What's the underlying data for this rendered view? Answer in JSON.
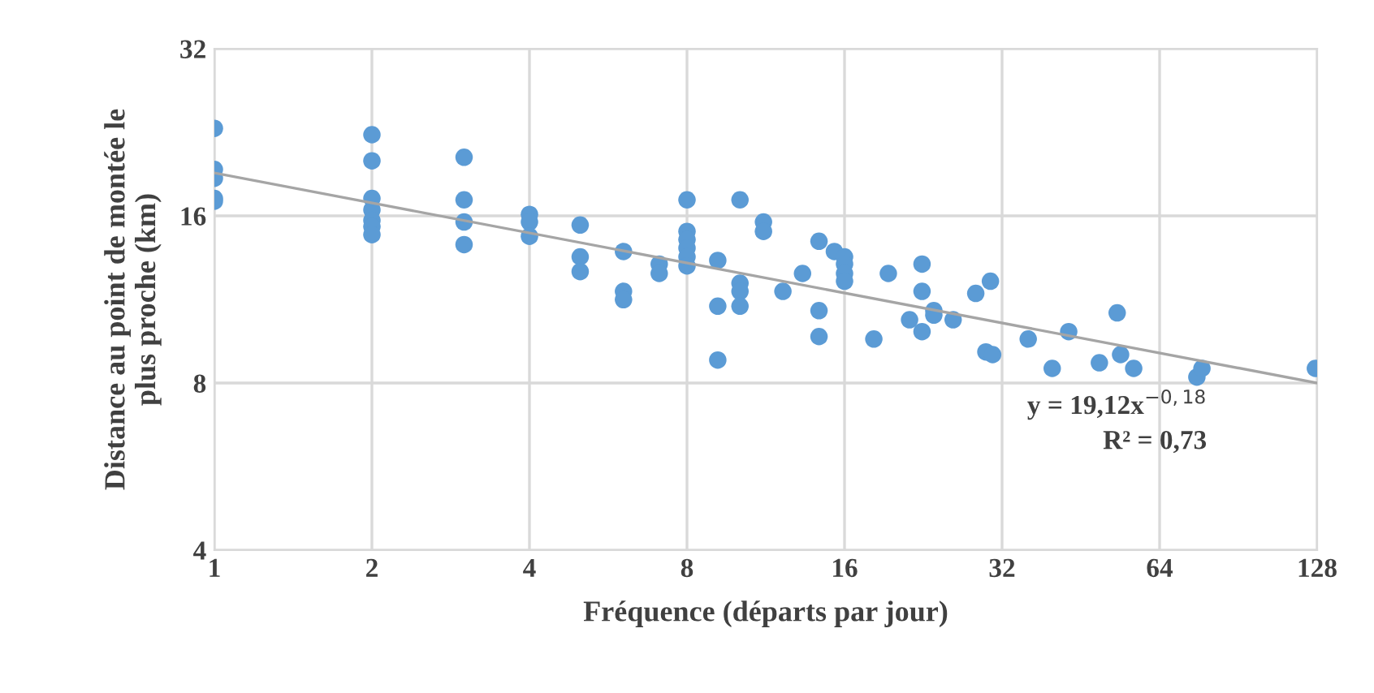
{
  "chart_data": {
    "type": "scatter",
    "xlabel": "Fréquence (départs par jour)",
    "ylabel": "Distance au point de montée le\nplus proche (km)",
    "log": "xy",
    "grid": true,
    "xlim": [
      1,
      128
    ],
    "ylim": [
      4,
      32
    ],
    "xticks": [
      1,
      2,
      4,
      8,
      16,
      32,
      64,
      128
    ],
    "yticks": [
      4,
      8,
      16,
      32
    ],
    "annotations": [
      "y = 19,12x$^{−0,18}$",
      "R² = 0,73"
    ],
    "series": [
      {
        "color": "#5b9bd5",
        "marker": "circle",
        "x": [
          1,
          1,
          1,
          1,
          1,
          2,
          2,
          2,
          2,
          2,
          2,
          2,
          3,
          3,
          3,
          3,
          4,
          4,
          4,
          5,
          5,
          5,
          6.05,
          6.05,
          6.05,
          7.08,
          7.08,
          8,
          8,
          8,
          8,
          8,
          8,
          9.16,
          9.16,
          9.16,
          10.1,
          10.1,
          10.1,
          10.1,
          11.2,
          11.2,
          12.2,
          13.3,
          14.3,
          14.3,
          14.3,
          15.3,
          16,
          16,
          16,
          16,
          18.2,
          19.4,
          21.3,
          22.5,
          22.5,
          22.5,
          23.7,
          23.7,
          25.8,
          28.5,
          30.4,
          29.8,
          30.7,
          35.9,
          39.9,
          42.9,
          49.1,
          53.1,
          53.9,
          57.1,
          75.4,
          77.1,
          127
        ],
        "values": [
          23.0,
          19.4,
          18.7,
          17.2,
          17.0,
          22.4,
          20.1,
          17.2,
          16.4,
          15.7,
          15.3,
          14.8,
          20.4,
          17.1,
          15.6,
          14.2,
          16.1,
          15.6,
          14.7,
          15.4,
          13.5,
          12.7,
          13.8,
          11.7,
          11.3,
          13.1,
          12.6,
          17.1,
          15.0,
          14.5,
          14.0,
          13.5,
          13.0,
          13.3,
          11.0,
          8.8,
          17.1,
          12.1,
          11.7,
          11.0,
          15.6,
          15.0,
          11.7,
          12.6,
          14.4,
          10.8,
          9.7,
          13.8,
          13.5,
          13.1,
          12.6,
          12.2,
          9.6,
          12.6,
          10.4,
          13.1,
          11.7,
          9.9,
          10.8,
          10.6,
          10.4,
          11.6,
          12.2,
          9.1,
          9.0,
          9.6,
          8.5,
          9.9,
          8.7,
          10.7,
          9.0,
          8.5,
          8.2,
          8.5,
          8.5
        ]
      },
      {
        "type": "line",
        "marker": "none",
        "color": "#a5a5a5",
        "x": [
          1,
          128
        ],
        "values": [
          19.12,
          8.0
        ]
      }
    ]
  }
}
